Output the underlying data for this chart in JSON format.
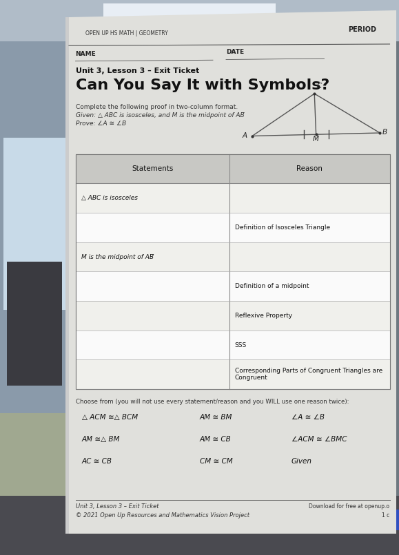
{
  "bg_color_top": "#8a9aaa",
  "bg_color_left": "#6a7a8a",
  "paper_color": "#dcdcda",
  "header_label": "OPEN UP HS MATH | GEOMETRY",
  "period_label": "PERIOD",
  "name_label": "NAME",
  "date_label": "DATE",
  "unit_label": "Unit 3, Lesson 3 – Exit Ticket",
  "title": "Can You Say It with Symbols?",
  "directions": "Complete the following proof in two-column format.",
  "given": "Given: △ ABC is isosceles, and M is the midpoint of AB̅",
  "prove": "Prove: ∠A ≅ ∠B",
  "col_header_statements": "Statements",
  "col_header_reason": "Reason",
  "table_rows": [
    {
      "statement": "△ ABC is isosceles",
      "reason": ""
    },
    {
      "statement": "",
      "reason": "Definition of Isosceles Triangle"
    },
    {
      "statement": "M is the midpoint of AB̅",
      "reason": ""
    },
    {
      "statement": "",
      "reason": "Definition of a midpoint"
    },
    {
      "statement": "",
      "reason": "Reflexive Property"
    },
    {
      "statement": "",
      "reason": "SSS"
    },
    {
      "statement": "",
      "reason": "Corresponding Parts of Congruent Triangles are\nCongruent"
    }
  ],
  "choose_header": "Choose from (you will not use every statement/reason and you WILL use one reason twice):",
  "choices_col1": [
    "△ ACM ≅△ BCM",
    "AM ≅△ BM",
    "AC ≅ CB"
  ],
  "choices_col2": [
    "AM ≅ BM",
    "AM ≅ CB",
    "CM ≅ CM"
  ],
  "choices_col3": [
    "∠A ≅ ∠B",
    "∠ACM ≅ ∠BMC",
    "Given"
  ],
  "footer_left1": "Unit 3, Lesson 3 – Exit Ticket",
  "footer_left2": "© 2021 Open Up Resources and Mathematics Vision Project",
  "footer_right1": "Download for free at openup.o",
  "footer_right2": "1 c"
}
